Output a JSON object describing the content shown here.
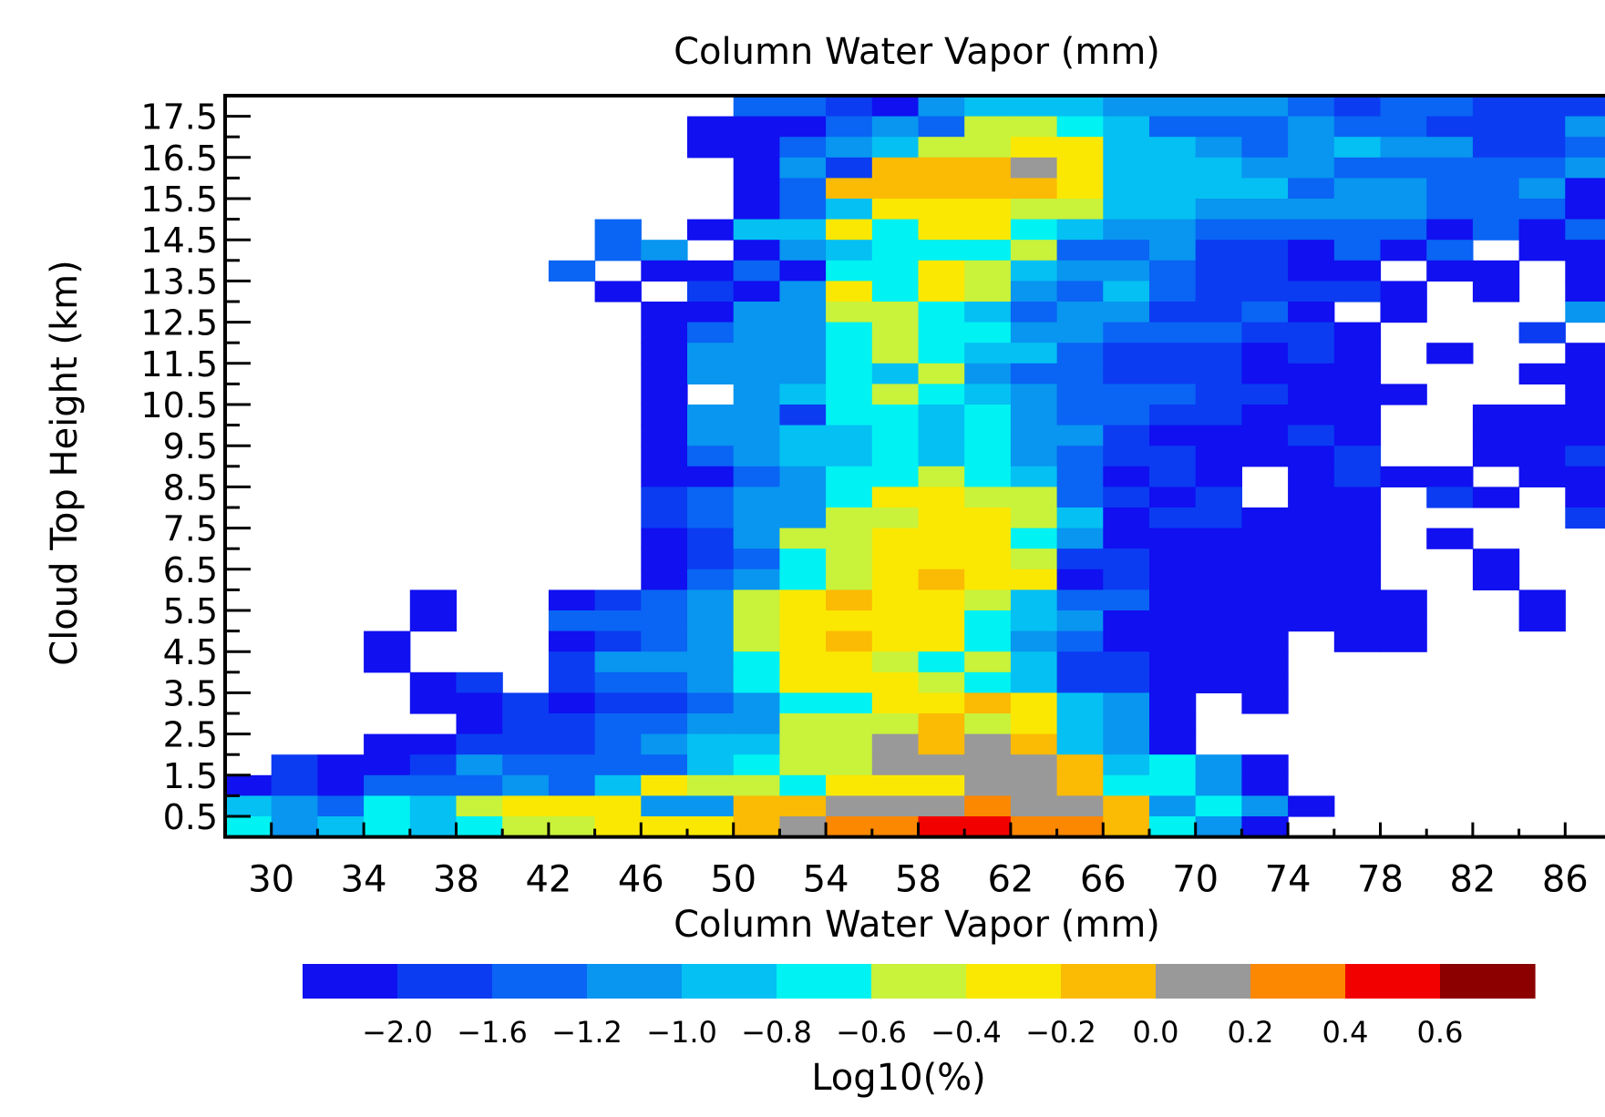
{
  "chart_data": {
    "type": "heatmap",
    "title": "Column Water Vapor (mm)",
    "xlabel": "Column Water Vapor (mm)",
    "ylabel": "Cloud Top Height (km)",
    "x_bin_start": 28,
    "x_bin_width": 2,
    "x_bins": 30,
    "xlim": [
      28,
      88
    ],
    "y_bin_start": 0,
    "y_bin_width": 0.5,
    "y_bins": 36,
    "ylim": [
      0,
      18
    ],
    "x_tick_labels": [
      "30",
      "34",
      "38",
      "42",
      "46",
      "50",
      "54",
      "58",
      "62",
      "66",
      "70",
      "74",
      "78",
      "82",
      "86"
    ],
    "y_tick_labels": [
      "0.5",
      "1.5",
      "2.5",
      "3.5",
      "4.5",
      "5.5",
      "6.5",
      "7.5",
      "8.5",
      "9.5",
      "10.5",
      "11.5",
      "12.5",
      "13.5",
      "14.5",
      "15.5",
      "16.5",
      "17.5"
    ],
    "colorbar": {
      "label": "Log10(%)",
      "tick_labels": [
        "-2.0",
        "-1.6",
        "-1.2",
        "-1.0",
        "-0.8",
        "-0.6",
        "-0.4",
        "-0.2",
        "0.0",
        "0.2",
        "0.4",
        "0.6"
      ],
      "colors": [
        "#1010f0",
        "#0b3cf2",
        "#0a64f4",
        "#0896f0",
        "#05c0f3",
        "#00f2f2",
        "#c9f23a",
        "#fae802",
        "#fbba04",
        "#999999",
        "#fb8800",
        "#f20000",
        "#8c0000"
      ],
      "color_level_labels": [
        "-2.0 and below",
        "-1.8",
        "-1.6",
        "-1.2",
        "-1.0",
        "-0.8",
        "-0.6",
        "-0.4",
        "-0.2",
        "0.0",
        "0.2",
        "0.4",
        "0.6"
      ]
    },
    "palette_codes": "x = no data; 0 = -2.0, 1 = -1.8, 2 = -1.6, 3 = -1.2, 4 = -1.0, 5 = -0.8, 6 = -0.6, 7 = -0.4, 8 = -0.2, 9 = 0.0, a = 0.2, b = 0.4, c = 0.6",
    "grid_rows_top_to_bottom": [
      "xxxxxxxxxxx2210344433332122111",
      "xxxxxxxxxx00023266542223221113",
      "xxxxxxxxxx00234667744323433112",
      "xxxxxxxxxxx0318889744433222223",
      "xxxxxxxxxxx0288888744442332230",
      "xxxxxxxxxxx0247776644333332220",
      "xxxxxxxx2x04475775433222220202",
      "xxxxxxxx23x0345556223110202x00",
      "xxxxxxx2x0020557643321100x00x0",
      "xxxxxxxx0x1037576324211110x0x0",
      "xxxxxxxxx003366542331120x0xxx3",
      "xxxxxxxxx0233565533222110xxx1x",
      "xxxxxxxxx0333565442111010x0xx0",
      "xxxxxxxxx0333546322111000xxx00",
      "xxxxxxxxx0x345654322211000xxx0",
      "xxxxxxxxx0331554532211000xx000",
      "xxxxxxxxx0334454533100010xx000",
      "xxxxxxxxx0234454532110001xx001",
      "xxxxxxxxx0023556542010x0100x00",
      "xxxxxxxxx1233577662101x00x10x0",
      "xxxxxxxxx1233667764011000xxxx1",
      "xxxxxxxxx0136677753000000x0xxx",
      "xxxxxxxxx0125677761100000xx0xx",
      "xxxxxxxxx0235678770100000xx0xx",
      "xxxx0xx0123678776422000000xx0x",
      "xxxx0xx2223677775430000000xx0x",
      "xxx0xxx0123678775320000x00xxxx",
      "xxx0xxx1333577656411000xxxxxxx",
      "xxxx01x1223577765411000xxxxxxx",
      "xxxx00101123557787430x0xxxxxxx",
      "xxxxx0112233666867430xxxxxxxxx",
      "xxx001112344669898430xxxxxxxxx",
      "x1001322224566999984530xxxxxxx",
      "01022232476657779985530xxxxxxx",
      "4325467773388999a9983530xxxxxx",
      "5345456677789aabbaa8530xxxxxxx"
    ]
  }
}
